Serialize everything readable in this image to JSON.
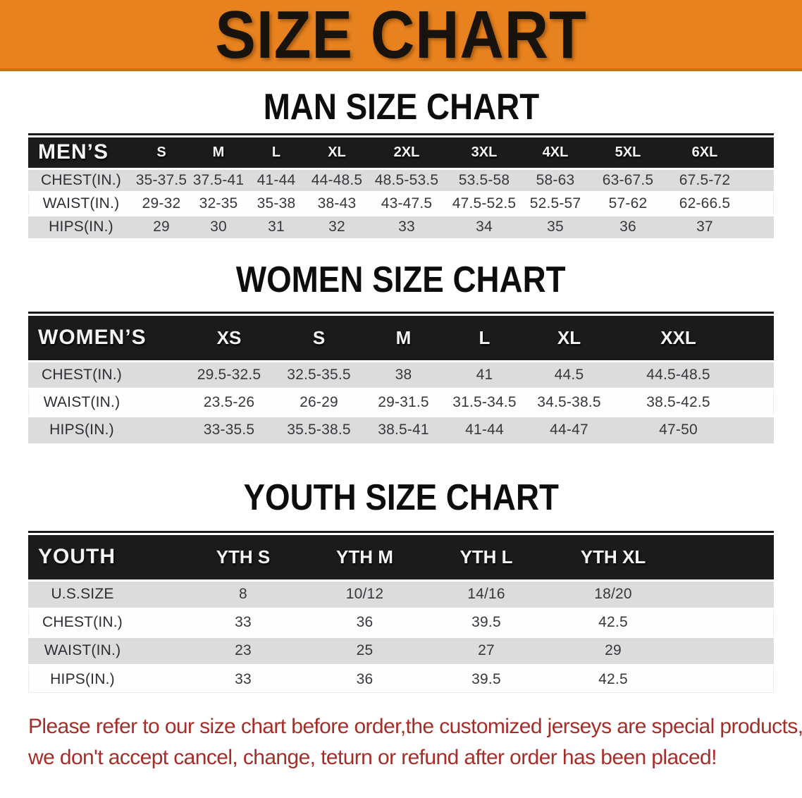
{
  "banner": {
    "title": "SIZE CHART",
    "bg_color": "#E8821E",
    "text_color": "#18130D"
  },
  "colors": {
    "header_bar": "#1B1B1B",
    "row_gray": "#DCDCDC",
    "row_white": "#FEFEFE",
    "footer_red": "#A52E28"
  },
  "sections": [
    {
      "heading": "MAN SIZE CHART",
      "table": {
        "header_label": "MEN’S",
        "sizes": [
          "S",
          "M",
          "L",
          "XL",
          "2XL",
          "3XL",
          "4XL",
          "5XL",
          "6XL"
        ],
        "rows": [
          {
            "label": "CHEST(IN.)",
            "values": [
              "35-37.5",
              "37.5-41",
              "41-44",
              "44-48.5",
              "48.5-53.5",
              "53.5-58",
              "58-63",
              "63-67.5",
              "67.5-72"
            ]
          },
          {
            "label": "WAIST(IN.)",
            "values": [
              "29-32",
              "32-35",
              "35-38",
              "38-43",
              "43-47.5",
              "47.5-52.5",
              "52.5-57",
              "57-62",
              "62-66.5"
            ]
          },
          {
            "label": "HIPS(IN.)",
            "values": [
              "29",
              "30",
              "31",
              "32",
              "33",
              "34",
              "35",
              "36",
              "37"
            ]
          }
        ]
      }
    },
    {
      "heading": "WOMEN SIZE CHART",
      "table": {
        "header_label": "WOMEN’S",
        "sizes": [
          "XS",
          "S",
          "M",
          "L",
          "XL",
          "XXL"
        ],
        "rows": [
          {
            "label": "CHEST(IN.)",
            "values": [
              "29.5-32.5",
              "32.5-35.5",
              "38",
              "41",
              "44.5",
              "44.5-48.5"
            ]
          },
          {
            "label": "WAIST(IN.)",
            "values": [
              "23.5-26",
              "26-29",
              "29-31.5",
              "31.5-34.5",
              "34.5-38.5",
              "38.5-42.5"
            ]
          },
          {
            "label": "HIPS(IN.)",
            "values": [
              "33-35.5",
              "35.5-38.5",
              "38.5-41",
              "41-44",
              "44-47",
              "47-50"
            ]
          }
        ]
      }
    },
    {
      "heading": "YOUTH SIZE CHART",
      "table": {
        "header_label": "YOUTH",
        "sizes": [
          "YTH S",
          "YTH M",
          "YTH L",
          "YTH XL"
        ],
        "rows": [
          {
            "label": "U.S.SIZE",
            "values": [
              "8",
              "10/12",
              "14/16",
              "18/20"
            ]
          },
          {
            "label": "CHEST(IN.)",
            "values": [
              "33",
              "36",
              "39.5",
              "42.5"
            ]
          },
          {
            "label": "WAIST(IN.)",
            "values": [
              "23",
              "25",
              "27",
              "29"
            ]
          },
          {
            "label": "HIPS(IN.)",
            "values": [
              "33",
              "36",
              "39.5",
              "42.5"
            ]
          }
        ]
      }
    }
  ],
  "footer_note": {
    "line1": "Please refer to our size chart before order,the customized jerseys are special products,",
    "line2": "we don't accept cancel, change, teturn or refund after order has been placed!"
  }
}
